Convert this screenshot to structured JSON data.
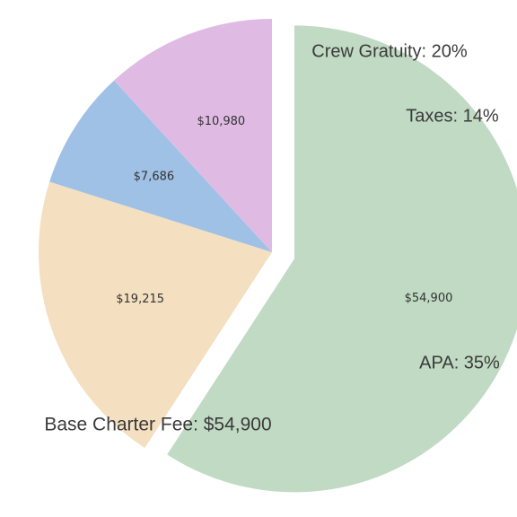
{
  "chart_data": {
    "type": "pie",
    "start_angle_deg": 0,
    "direction": "clockwise",
    "exploded_index": 0,
    "slices": [
      {
        "category": "Base Charter Fee",
        "value": 54900,
        "value_label": "$54,900",
        "outer_label": "Base Charter Fee: $54,900",
        "color": "#c0dac3"
      },
      {
        "category": "APA",
        "value": 19215,
        "value_label": "$19,215",
        "outer_label": "APA: 35%",
        "color": "#f4e0c0"
      },
      {
        "category": "Taxes",
        "value": 7686,
        "value_label": "$7,686",
        "outer_label": "Taxes: 14%",
        "color": "#9fc1e5"
      },
      {
        "category": "Crew Gratuity",
        "value": 10980,
        "value_label": "$10,980",
        "outer_label": "Crew Gratuity: 20%",
        "color": "#dfbbe4"
      }
    ]
  }
}
